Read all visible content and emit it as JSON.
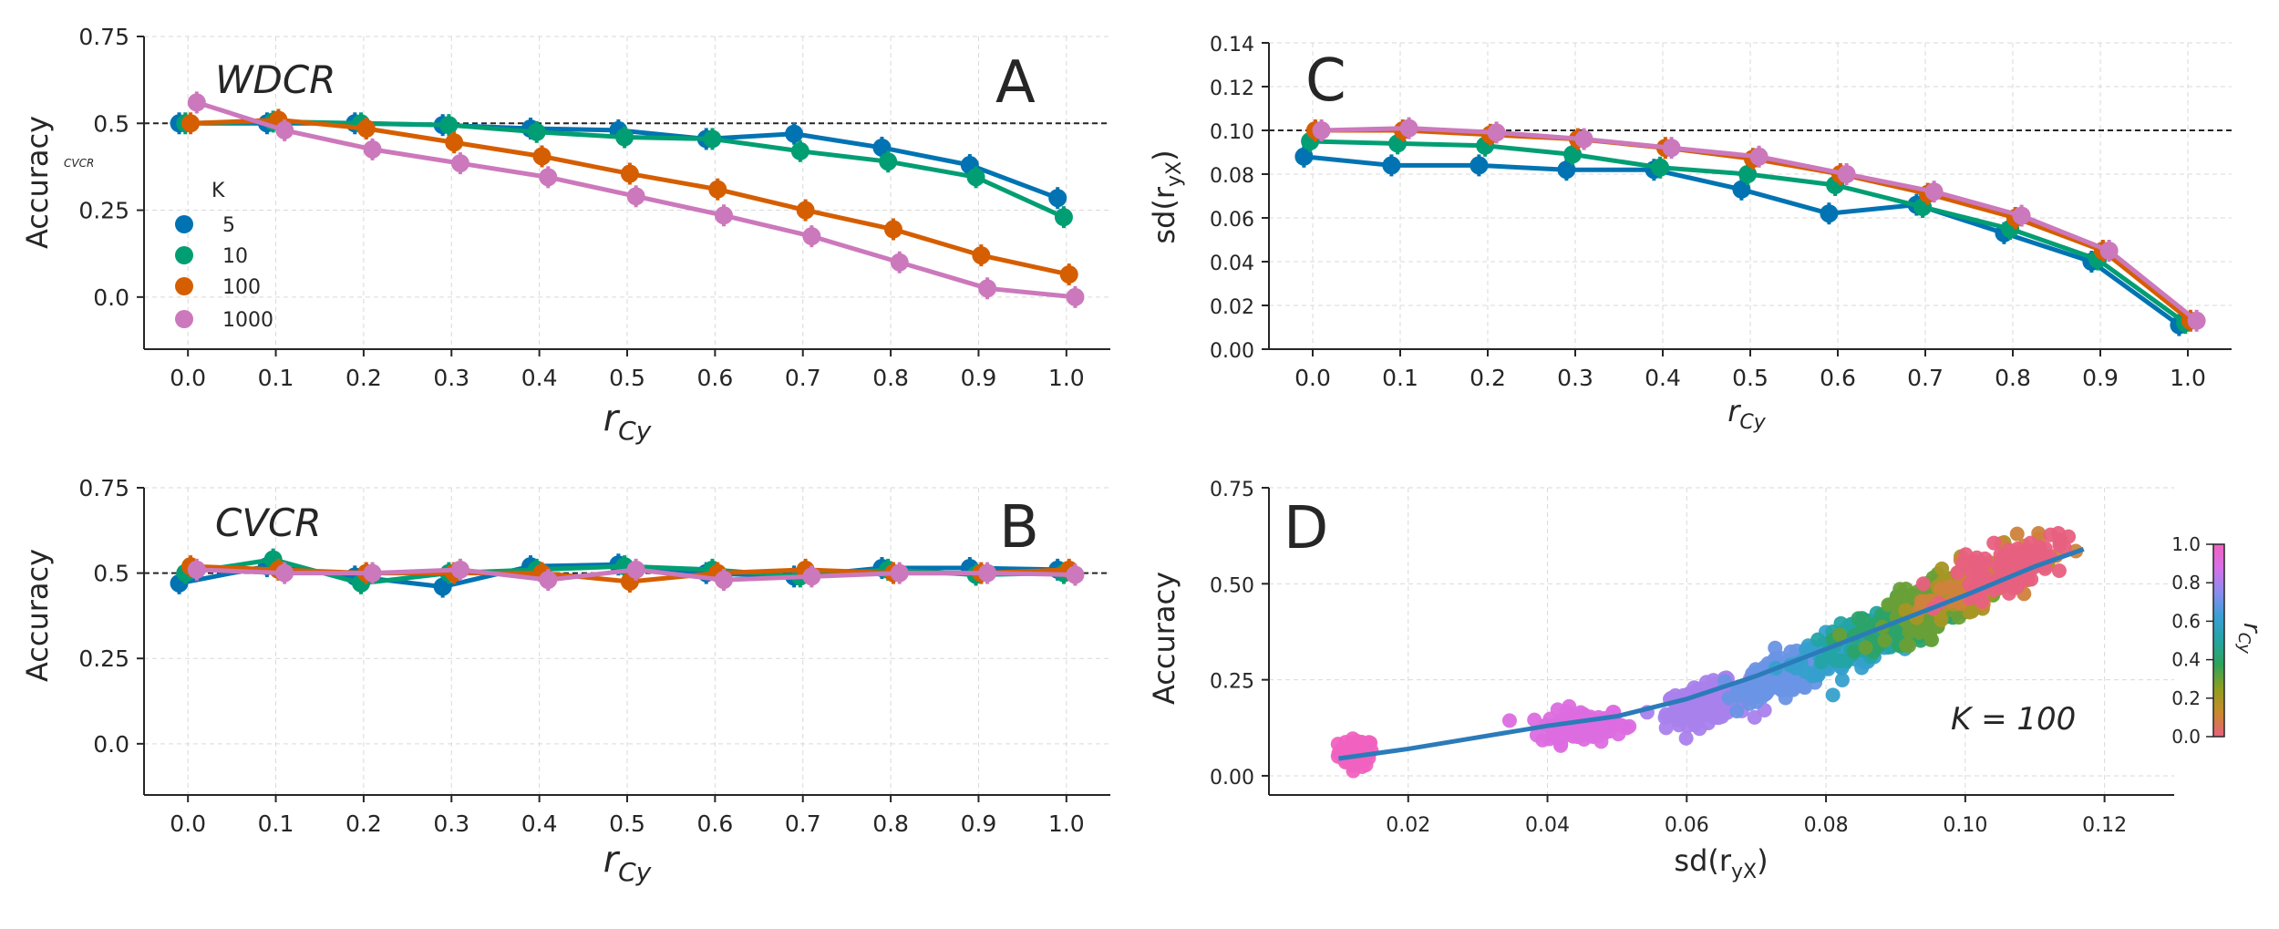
{
  "figure": {
    "panels": [
      {
        "id": "A",
        "letter": "A",
        "method": "WDCR",
        "ylabel": "Accuracy",
        "ylabel_sub": "CVCR",
        "xlabel_base": "r",
        "xlabel_sub": "Cy"
      },
      {
        "id": "B",
        "letter": "B",
        "method": "CVCR",
        "ylabel": "Accuracy",
        "xlabel_base": "r",
        "xlabel_sub": "Cy"
      },
      {
        "id": "C",
        "letter": "C",
        "ylabel_base": "sd(r",
        "ylabel_sub": "yX",
        "ylabel_close": ")",
        "xlabel_base": "r",
        "xlabel_sub": "Cy"
      },
      {
        "id": "D",
        "letter": "D",
        "ylabel": "Accuracy",
        "xlabel_base": "sd(r",
        "xlabel_sub": "yX",
        "xlabel_close": ")",
        "annotation": "K = 100",
        "colorbar_label_base": "r",
        "colorbar_label_sub": "Cy"
      }
    ],
    "legend": {
      "title": "K",
      "entries": [
        "5",
        "10",
        "100",
        "1000"
      ]
    }
  },
  "chart_data": [
    {
      "panel": "A",
      "type": "line",
      "x": [
        0.0,
        0.1,
        0.2,
        0.3,
        0.4,
        0.5,
        0.6,
        0.7,
        0.8,
        0.9,
        1.0
      ],
      "xticks": [
        "0.0",
        "0.1",
        "0.2",
        "0.3",
        "0.4",
        "0.5",
        "0.6",
        "0.7",
        "0.8",
        "0.9",
        "1.0"
      ],
      "yticks": [
        "0.0",
        "0.25",
        "0.5",
        "0.75"
      ],
      "ylim": [
        -0.15,
        0.75
      ],
      "xlim": [
        -0.05,
        1.05
      ],
      "reference_line": 0.5,
      "grid": true,
      "series": [
        {
          "name": "5",
          "color": "#0173b2",
          "values": [
            0.5,
            0.5,
            0.5,
            0.495,
            0.485,
            0.48,
            0.455,
            0.47,
            0.43,
            0.38,
            0.285
          ]
        },
        {
          "name": "10",
          "color": "#029e73",
          "values": [
            0.5,
            0.505,
            0.5,
            0.495,
            0.475,
            0.46,
            0.455,
            0.42,
            0.39,
            0.345,
            0.23
          ]
        },
        {
          "name": "100",
          "color": "#d55e00",
          "values": [
            0.5,
            0.51,
            0.485,
            0.445,
            0.405,
            0.355,
            0.31,
            0.25,
            0.195,
            0.12,
            0.065
          ]
        },
        {
          "name": "1000",
          "color": "#cc78bc",
          "values": [
            0.56,
            0.48,
            0.425,
            0.385,
            0.345,
            0.29,
            0.235,
            0.175,
            0.1,
            0.025,
            0.0
          ]
        }
      ]
    },
    {
      "panel": "B",
      "type": "line",
      "x": [
        0.0,
        0.1,
        0.2,
        0.3,
        0.4,
        0.5,
        0.6,
        0.7,
        0.8,
        0.9,
        1.0
      ],
      "xticks": [
        "0.0",
        "0.1",
        "0.2",
        "0.3",
        "0.4",
        "0.5",
        "0.6",
        "0.7",
        "0.8",
        "0.9",
        "1.0"
      ],
      "yticks": [
        "0.0",
        "0.25",
        "0.5",
        "0.75"
      ],
      "ylim": [
        -0.15,
        0.75
      ],
      "xlim": [
        -0.05,
        1.05
      ],
      "reference_line": 0.5,
      "grid": true,
      "series": [
        {
          "name": "5",
          "color": "#0173b2",
          "values": [
            0.47,
            0.52,
            0.49,
            0.46,
            0.52,
            0.525,
            0.5,
            0.49,
            0.515,
            0.515,
            0.51
          ]
        },
        {
          "name": "10",
          "color": "#029e73",
          "values": [
            0.5,
            0.54,
            0.47,
            0.5,
            0.51,
            0.52,
            0.51,
            0.49,
            0.51,
            0.495,
            0.5
          ]
        },
        {
          "name": "100",
          "color": "#d55e00",
          "values": [
            0.52,
            0.51,
            0.5,
            0.5,
            0.5,
            0.475,
            0.5,
            0.51,
            0.5,
            0.5,
            0.51
          ]
        },
        {
          "name": "1000",
          "color": "#cc78bc",
          "values": [
            0.51,
            0.5,
            0.5,
            0.51,
            0.48,
            0.51,
            0.48,
            0.49,
            0.5,
            0.5,
            0.495
          ]
        }
      ]
    },
    {
      "panel": "C",
      "type": "line",
      "x": [
        0.0,
        0.1,
        0.2,
        0.3,
        0.4,
        0.5,
        0.6,
        0.7,
        0.8,
        0.9,
        1.0
      ],
      "xticks": [
        "0.0",
        "0.1",
        "0.2",
        "0.3",
        "0.4",
        "0.5",
        "0.6",
        "0.7",
        "0.8",
        "0.9",
        "1.0"
      ],
      "yticks": [
        "0.00",
        "0.02",
        "0.04",
        "0.06",
        "0.08",
        "0.10",
        "0.12",
        "0.14"
      ],
      "ylim": [
        0.0,
        0.14
      ],
      "xlim": [
        -0.05,
        1.05
      ],
      "reference_line": 0.1,
      "grid": true,
      "series": [
        {
          "name": "5",
          "color": "#0173b2",
          "values": [
            0.088,
            0.084,
            0.084,
            0.082,
            0.082,
            0.073,
            0.062,
            0.066,
            0.053,
            0.04,
            0.011
          ]
        },
        {
          "name": "10",
          "color": "#029e73",
          "values": [
            0.095,
            0.094,
            0.093,
            0.089,
            0.083,
            0.08,
            0.075,
            0.065,
            0.055,
            0.041,
            0.012
          ]
        },
        {
          "name": "100",
          "color": "#d55e00",
          "values": [
            0.1,
            0.1,
            0.098,
            0.096,
            0.092,
            0.087,
            0.08,
            0.071,
            0.06,
            0.045,
            0.013
          ]
        },
        {
          "name": "1000",
          "color": "#cc78bc",
          "values": [
            0.1,
            0.101,
            0.099,
            0.096,
            0.092,
            0.088,
            0.08,
            0.072,
            0.061,
            0.045,
            0.013
          ]
        }
      ]
    },
    {
      "panel": "D",
      "type": "scatter",
      "xticks": [
        "0.02",
        "0.04",
        "0.06",
        "0.08",
        "0.10",
        "0.12"
      ],
      "yticks": [
        "0.00",
        "0.25",
        "0.50",
        "0.75"
      ],
      "xlim": [
        0.0,
        0.13
      ],
      "ylim": [
        -0.05,
        0.75
      ],
      "grid": true,
      "fit_line": {
        "color": "#2b7bba",
        "x": [
          0.01,
          0.02,
          0.03,
          0.04,
          0.05,
          0.06,
          0.07,
          0.08,
          0.09,
          0.1,
          0.11,
          0.117
        ],
        "y": [
          0.045,
          0.07,
          0.1,
          0.13,
          0.155,
          0.2,
          0.26,
          0.33,
          0.4,
          0.47,
          0.545,
          0.59
        ]
      },
      "clusters": [
        {
          "r": 1.0,
          "x_center": 0.0125,
          "x_spread": 0.0025,
          "y_at_center": 0.06,
          "slope": 0.0,
          "noise": 0.03,
          "n": 70
        },
        {
          "r": 0.9,
          "x_center": 0.045,
          "x_spread": 0.006,
          "y_at_center": 0.13,
          "slope": 1.0,
          "noise": 0.035,
          "n": 120
        },
        {
          "r": 0.8,
          "x_center": 0.063,
          "x_spread": 0.006,
          "y_at_center": 0.19,
          "slope": 3.5,
          "noise": 0.04,
          "n": 160
        },
        {
          "r": 0.7,
          "x_center": 0.074,
          "x_spread": 0.006,
          "y_at_center": 0.26,
          "slope": 4.5,
          "noise": 0.04,
          "n": 170
        },
        {
          "r": 0.6,
          "x_center": 0.083,
          "x_spread": 0.007,
          "y_at_center": 0.33,
          "slope": 5.5,
          "noise": 0.045,
          "n": 170
        },
        {
          "r": 0.5,
          "x_center": 0.088,
          "x_spread": 0.007,
          "y_at_center": 0.38,
          "slope": 6.0,
          "noise": 0.045,
          "n": 160
        },
        {
          "r": 0.4,
          "x_center": 0.093,
          "x_spread": 0.008,
          "y_at_center": 0.42,
          "slope": 6.5,
          "noise": 0.05,
          "n": 150
        },
        {
          "r": 0.3,
          "x_center": 0.097,
          "x_spread": 0.008,
          "y_at_center": 0.46,
          "slope": 6.5,
          "noise": 0.05,
          "n": 140
        },
        {
          "r": 0.2,
          "x_center": 0.101,
          "x_spread": 0.008,
          "y_at_center": 0.5,
          "slope": 6.5,
          "noise": 0.05,
          "n": 120
        },
        {
          "r": 0.1,
          "x_center": 0.104,
          "x_spread": 0.008,
          "y_at_center": 0.52,
          "slope": 6.5,
          "noise": 0.05,
          "n": 100
        },
        {
          "r": 0.0,
          "x_center": 0.106,
          "x_spread": 0.008,
          "y_at_center": 0.54,
          "slope": 6.5,
          "noise": 0.05,
          "n": 80
        }
      ],
      "colorbar": {
        "ticks": [
          "0.0",
          "0.2",
          "0.4",
          "0.6",
          "0.8",
          "1.0"
        ],
        "range": [
          0.0,
          1.0
        ],
        "stops": [
          "#e8607f",
          "#c98a2b",
          "#8f9e1f",
          "#2ea35a",
          "#24a4a4",
          "#3a9fd6",
          "#8a8cef",
          "#d770e8",
          "#f062c0"
        ]
      }
    }
  ]
}
